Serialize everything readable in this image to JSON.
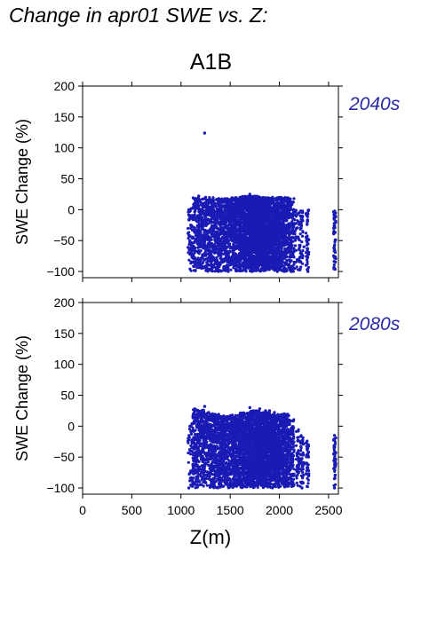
{
  "page": {
    "title": "Change in apr01 SWE vs. Z:",
    "scenario": "A1B",
    "xlabel": "Z(m)"
  },
  "colors": {
    "points": "#1a1ab4",
    "panel_label": "#2a2aa8",
    "axis": "#000000"
  },
  "chart_data": [
    {
      "type": "scatter",
      "panel_label": "2040s",
      "xlabel": "",
      "ylabel": "SWE Change (%)",
      "xlim": [
        0,
        2600
      ],
      "ylim": [
        -110,
        200
      ],
      "yticks": [
        "200",
        "150",
        "100",
        "50",
        "0",
        "−50",
        "−100"
      ],
      "ytick_values": [
        200,
        150,
        100,
        50,
        0,
        -50,
        -100
      ],
      "xticks": [],
      "grid": false,
      "series": [
        {
          "points": [
            [
              1240,
              124
            ],
            [
              1080,
              0
            ],
            [
              1100,
              -30
            ],
            [
              1150,
              15
            ],
            [
              1200,
              -60
            ],
            [
              1250,
              20
            ],
            [
              1300,
              -90
            ],
            [
              1350,
              -10
            ],
            [
              1400,
              10
            ],
            [
              1450,
              -70
            ],
            [
              1500,
              15
            ],
            [
              1550,
              -40
            ],
            [
              1600,
              20
            ],
            [
              1650,
              -95
            ],
            [
              1700,
              25
            ],
            [
              1750,
              -20
            ],
            [
              1800,
              15
            ],
            [
              1850,
              -80
            ],
            [
              1900,
              10
            ],
            [
              1950,
              -50
            ],
            [
              2000,
              20
            ],
            [
              2050,
              -100
            ],
            [
              2100,
              15
            ],
            [
              2150,
              -85
            ],
            [
              2200,
              -5
            ],
            [
              2250,
              -60
            ],
            [
              2290,
              -100
            ],
            [
              2560,
              -5
            ],
            [
              2560,
              -95
            ],
            [
              1120,
              -85
            ],
            [
              1180,
              22
            ],
            [
              1380,
              -100
            ],
            [
              1480,
              -100
            ],
            [
              1720,
              -100
            ],
            [
              1980,
              -100
            ],
            [
              2120,
              -100
            ]
          ],
          "bands": [
            {
              "x": [
                1070,
                1120
              ],
              "y": [
                -100,
                2
              ],
              "n": 60
            },
            {
              "x": [
                1120,
                1200
              ],
              "y": [
                -100,
                20
              ],
              "n": 170
            },
            {
              "x": [
                1200,
                1300
              ],
              "y": [
                -100,
                20
              ],
              "n": 260
            },
            {
              "x": [
                1300,
                1400
              ],
              "y": [
                -100,
                20
              ],
              "n": 300
            },
            {
              "x": [
                1400,
                1500
              ],
              "y": [
                -100,
                18
              ],
              "n": 320
            },
            {
              "x": [
                1500,
                1600
              ],
              "y": [
                -100,
                20
              ],
              "n": 380
            },
            {
              "x": [
                1600,
                1700
              ],
              "y": [
                -100,
                22
              ],
              "n": 500
            },
            {
              "x": [
                1700,
                1800
              ],
              "y": [
                -100,
                22
              ],
              "n": 620
            },
            {
              "x": [
                1800,
                1900
              ],
              "y": [
                -100,
                20
              ],
              "n": 620
            },
            {
              "x": [
                1900,
                2000
              ],
              "y": [
                -100,
                20
              ],
              "n": 520
            },
            {
              "x": [
                2000,
                2100
              ],
              "y": [
                -100,
                20
              ],
              "n": 380
            },
            {
              "x": [
                2100,
                2150
              ],
              "y": [
                -100,
                18
              ],
              "n": 120
            },
            {
              "x": [
                2150,
                2200
              ],
              "y": [
                -100,
                0
              ],
              "n": 40
            },
            {
              "x": [
                2200,
                2240
              ],
              "y": [
                -100,
                0
              ],
              "n": 55
            },
            {
              "x": [
                2270,
                2300
              ],
              "y": [
                -100,
                0
              ],
              "n": 45
            },
            {
              "x": [
                2550,
                2575
              ],
              "y": [
                -100,
                -2
              ],
              "n": 55
            }
          ]
        }
      ]
    },
    {
      "type": "scatter",
      "panel_label": "2080s",
      "xlabel": "Z(m)",
      "ylabel": "SWE Change (%)",
      "xlim": [
        0,
        2600
      ],
      "ylim": [
        -110,
        200
      ],
      "yticks": [
        "200",
        "150",
        "100",
        "50",
        "0",
        "−50",
        "−100"
      ],
      "ytick_values": [
        200,
        150,
        100,
        50,
        0,
        -50,
        -100
      ],
      "xticks": [
        "0",
        "500",
        "1000",
        "1500",
        "2000",
        "2500"
      ],
      "xtick_values": [
        0,
        500,
        1000,
        1500,
        2000,
        2500
      ],
      "grid": false,
      "series": [
        {
          "points": [
            [
              1140,
              28
            ],
            [
              1160,
              25
            ],
            [
              1190,
              22
            ],
            [
              1240,
              32
            ],
            [
              1280,
              22
            ],
            [
              1320,
              20
            ],
            [
              1700,
              30
            ],
            [
              1800,
              28
            ],
            [
              1860,
              25
            ],
            [
              1900,
              25
            ],
            [
              1950,
              22
            ],
            [
              2050,
              20
            ],
            [
              2100,
              10
            ],
            [
              2560,
              -15
            ],
            [
              2560,
              -100
            ],
            [
              1080,
              -100
            ],
            [
              1100,
              -75
            ],
            [
              2230,
              -100
            ]
          ],
          "bands": [
            {
              "x": [
                1070,
                1120
              ],
              "y": [
                -100,
                5
              ],
              "n": 40
            },
            {
              "x": [
                1120,
                1200
              ],
              "y": [
                -100,
                28
              ],
              "n": 200
            },
            {
              "x": [
                1200,
                1300
              ],
              "y": [
                -100,
                28
              ],
              "n": 280
            },
            {
              "x": [
                1300,
                1400
              ],
              "y": [
                -100,
                20
              ],
              "n": 320
            },
            {
              "x": [
                1400,
                1500
              ],
              "y": [
                -100,
                18
              ],
              "n": 340
            },
            {
              "x": [
                1500,
                1600
              ],
              "y": [
                -100,
                18
              ],
              "n": 380
            },
            {
              "x": [
                1600,
                1700
              ],
              "y": [
                -100,
                22
              ],
              "n": 500
            },
            {
              "x": [
                1700,
                1800
              ],
              "y": [
                -100,
                25
              ],
              "n": 620
            },
            {
              "x": [
                1800,
                1900
              ],
              "y": [
                -100,
                22
              ],
              "n": 620
            },
            {
              "x": [
                1900,
                2000
              ],
              "y": [
                -100,
                20
              ],
              "n": 520
            },
            {
              "x": [
                2000,
                2100
              ],
              "y": [
                -100,
                20
              ],
              "n": 380
            },
            {
              "x": [
                2100,
                2150
              ],
              "y": [
                -100,
                12
              ],
              "n": 120
            },
            {
              "x": [
                2170,
                2200
              ],
              "y": [
                -100,
                -5
              ],
              "n": 40
            },
            {
              "x": [
                2210,
                2250
              ],
              "y": [
                -100,
                -15
              ],
              "n": 55
            },
            {
              "x": [
                2270,
                2300
              ],
              "y": [
                -100,
                -20
              ],
              "n": 45
            },
            {
              "x": [
                2550,
                2575
              ],
              "y": [
                -100,
                -18
              ],
              "n": 50
            }
          ]
        }
      ]
    }
  ]
}
